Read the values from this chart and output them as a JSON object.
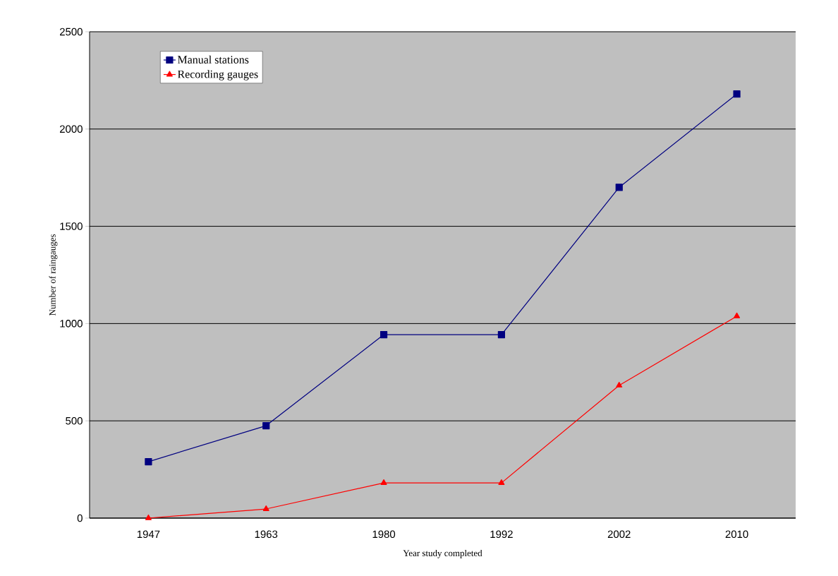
{
  "chart_data": {
    "type": "line",
    "xlabel": "Year study completed",
    "ylabel": "Number of raingauges",
    "categories": [
      "1947",
      "1963",
      "1980",
      "1992",
      "2002",
      "2010"
    ],
    "series": [
      {
        "name": "Manual stations",
        "color": "#000080",
        "marker": "square",
        "values": [
          290,
          475,
          943,
          943,
          1700,
          2180
        ]
      },
      {
        "name": "Recording gauges",
        "color": "#ff0000",
        "marker": "triangle",
        "values": [
          0,
          47,
          181,
          181,
          682,
          1038
        ]
      }
    ],
    "ylim": [
      0,
      2500
    ],
    "yticks": [
      0,
      500,
      1000,
      1500,
      2000,
      2500
    ],
    "grid": "y",
    "legend": "top left"
  }
}
